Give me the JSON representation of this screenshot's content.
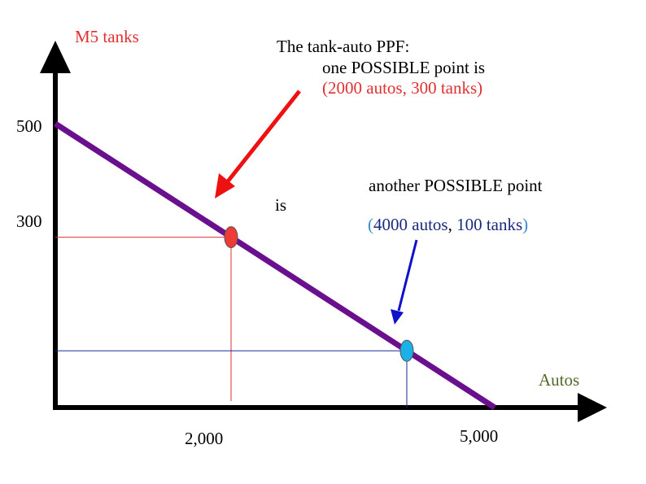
{
  "chart_data": {
    "type": "line",
    "title_lines": [
      "The tank-auto PPF:",
      "one POSSIBLE point is"
    ],
    "xlabel": "Autos",
    "ylabel": "M5 tanks",
    "x_tick_labels": [
      "2,000",
      "5,000"
    ],
    "y_tick_labels": [
      "500",
      "300"
    ],
    "series": [
      {
        "x": [
          0,
          5000
        ],
        "y": [
          500,
          0
        ]
      }
    ],
    "points": [
      {
        "x": 2000,
        "y": 300,
        "color": "#ef3b36"
      },
      {
        "x": 4000,
        "y": 100,
        "color": "#1ab0e8"
      }
    ],
    "annotations": {
      "point1_label": "(2000 autos, 300 tanks)",
      "connector": "is",
      "point2_intro": "another POSSIBLE point",
      "point2_label": {
        "open": "(",
        "autos": "4000 autos",
        "comma": ",",
        "tanks": "100 tanks",
        "close": ")"
      }
    },
    "colors": {
      "line": "#6a0f8e",
      "axis": "#000000",
      "ylabel": "#e03030",
      "xlabel": "#4f6b2a",
      "point1_guides": "#e03030",
      "point2_guides": "#1a2a9a",
      "arrow1": "#ee1111",
      "arrow2": "#1111cc",
      "point1_label": "#e03030",
      "point2_paren": "#3a8ad0",
      "point2_text": "#1a2a7a"
    }
  }
}
